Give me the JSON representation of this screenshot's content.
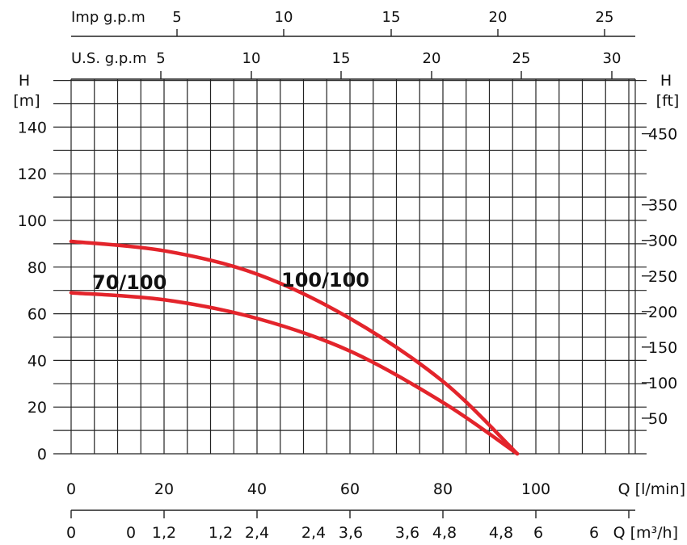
{
  "chart_data": {
    "type": "line",
    "series": [
      {
        "name": "70/100",
        "x": [
          0,
          20,
          40,
          60,
          80,
          96
        ],
        "y": [
          69,
          66,
          58,
          44,
          22,
          0
        ]
      },
      {
        "name": "100/100",
        "x": [
          0,
          20,
          40,
          60,
          80,
          96
        ],
        "y": [
          91,
          87,
          77,
          58,
          31,
          0
        ]
      }
    ],
    "series_color": "#e3242b",
    "x_axis": {
      "label": "Q [l/min]",
      "range": [
        0,
        120
      ],
      "ticks": [
        "0",
        "20",
        "40",
        "60",
        "80",
        "100"
      ]
    },
    "y_axis_left": {
      "label_top": "H",
      "label_unit": "[m]",
      "range": [
        0,
        160
      ],
      "ticks": [
        "0",
        "20",
        "40",
        "60",
        "80",
        "100",
        "120",
        "140"
      ]
    },
    "y_axis_right": {
      "label_top": "H",
      "label_unit": "[ft]",
      "ticks": [
        "50",
        "100",
        "150",
        "200",
        "250",
        "300",
        "350",
        "450"
      ]
    },
    "top_axis_imp": {
      "label": "Imp g.p.m",
      "ticks": [
        "5",
        "10",
        "15",
        "20",
        "25"
      ]
    },
    "top_axis_us": {
      "label": "U.S. g.p.m",
      "ticks": [
        "5",
        "10",
        "15",
        "20",
        "25",
        "30"
      ]
    },
    "bottom_axis_m3h": {
      "label": "Q [m³/h]",
      "ticks": [
        "0",
        "0",
        "1,2",
        "1,2",
        "2,4",
        "2,4",
        "3,6",
        "3,6",
        "4,8",
        "4,8",
        "6",
        "6"
      ]
    },
    "grid": true
  }
}
